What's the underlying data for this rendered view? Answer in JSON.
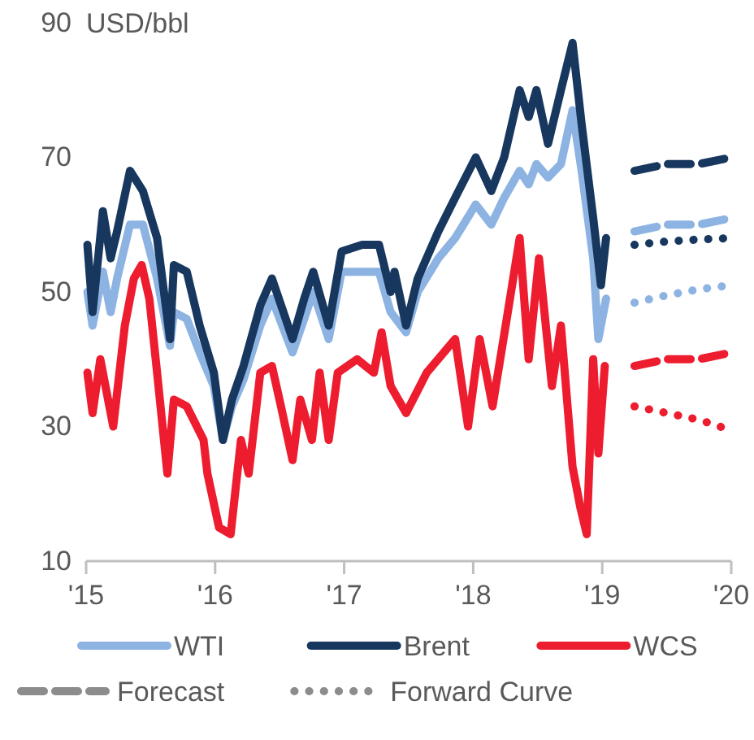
{
  "chart_data": {
    "type": "line",
    "ylabel": "USD/bbl",
    "xlim": [
      2015,
      2020
    ],
    "xticks": [
      {
        "value": 2015,
        "label": "'15"
      },
      {
        "value": 2016,
        "label": "'16"
      },
      {
        "value": 2017,
        "label": "'17"
      },
      {
        "value": 2018,
        "label": "'18"
      },
      {
        "value": 2019,
        "label": "'19"
      },
      {
        "value": 2020,
        "label": "'20"
      }
    ],
    "ylim": [
      10,
      90
    ],
    "yticks": [
      10,
      30,
      50,
      70,
      90
    ],
    "grid": false,
    "legend": "bottom",
    "marker": "none",
    "annotations": [
      "Forecast",
      "Forward Curve"
    ],
    "series": [
      {
        "name": "WTI",
        "color": "#8db3e2",
        "line_style": "solid",
        "x": [
          2015.01,
          2015.05,
          2015.13,
          2015.19,
          2015.24,
          2015.34,
          2015.44,
          2015.55,
          2015.65,
          2015.68,
          2015.78,
          2015.88,
          2015.99,
          2016.06,
          2016.13,
          2016.22,
          2016.35,
          2016.44,
          2016.6,
          2016.69,
          2016.76,
          2016.88,
          2016.98,
          2017.14,
          2017.27,
          2017.36,
          2017.48,
          2017.57,
          2017.73,
          2017.86,
          2018.02,
          2018.14,
          2018.24,
          2018.36,
          2018.43,
          2018.49,
          2018.58,
          2018.68,
          2018.77,
          2018.84,
          2018.93,
          2018.97,
          2019.03
        ],
        "values": [
          50,
          45,
          53,
          47,
          52,
          60,
          60,
          52,
          42,
          47,
          46,
          41,
          36,
          28,
          33,
          37,
          45,
          49,
          41,
          46,
          50,
          43,
          53,
          53,
          53,
          47,
          44,
          50,
          55,
          58,
          63,
          60,
          64,
          68,
          66,
          69,
          67,
          69,
          77,
          68,
          55,
          43,
          49
        ]
      },
      {
        "name": "Brent",
        "color": "#17375e",
        "line_style": "solid",
        "x": [
          2015.01,
          2015.05,
          2015.13,
          2015.19,
          2015.24,
          2015.34,
          2015.44,
          2015.55,
          2015.65,
          2015.68,
          2015.78,
          2015.88,
          2015.99,
          2016.06,
          2016.13,
          2016.22,
          2016.35,
          2016.44,
          2016.6,
          2016.69,
          2016.76,
          2016.88,
          2016.98,
          2017.14,
          2017.27,
          2017.36,
          2017.39,
          2017.48,
          2017.57,
          2017.73,
          2017.86,
          2018.02,
          2018.14,
          2018.24,
          2018.36,
          2018.43,
          2018.49,
          2018.58,
          2018.68,
          2018.77,
          2018.84,
          2018.93,
          2018.99,
          2019.03
        ],
        "values": [
          57,
          47,
          62,
          55,
          59,
          68,
          65,
          58,
          43,
          54,
          53,
          45,
          38,
          28,
          34,
          39,
          48,
          52,
          43,
          49,
          53,
          45,
          56,
          57,
          57,
          50,
          53,
          45,
          52,
          59,
          64,
          70,
          65,
          70,
          80,
          76,
          80,
          72,
          80,
          87,
          75,
          61,
          51,
          58
        ]
      },
      {
        "name": "WCS",
        "color": "#ed1c2e",
        "line_style": "solid",
        "x": [
          2015.01,
          2015.05,
          2015.11,
          2015.21,
          2015.3,
          2015.37,
          2015.43,
          2015.49,
          2015.55,
          2015.63,
          2015.68,
          2015.78,
          2015.91,
          2015.94,
          2016.03,
          2016.12,
          2016.2,
          2016.26,
          2016.35,
          2016.44,
          2016.51,
          2016.6,
          2016.66,
          2016.75,
          2016.81,
          2016.88,
          2016.95,
          2017.1,
          2017.23,
          2017.29,
          2017.36,
          2017.48,
          2017.64,
          2017.86,
          2017.96,
          2018.05,
          2018.15,
          2018.26,
          2018.36,
          2018.43,
          2018.51,
          2018.61,
          2018.68,
          2018.77,
          2018.83,
          2018.88,
          2018.93,
          2018.97,
          2019.02
        ],
        "values": [
          38,
          32,
          40,
          30,
          45,
          52,
          54,
          49,
          38,
          23,
          34,
          33,
          28,
          23,
          15,
          14,
          28,
          23,
          38,
          39,
          33,
          25,
          34,
          28,
          38,
          28,
          38,
          40,
          38,
          44,
          36,
          32,
          38,
          43,
          30,
          43,
          33,
          46,
          58,
          40,
          55,
          36,
          45,
          24,
          18,
          14,
          40,
          26,
          39
        ]
      },
      {
        "color": "#17375e",
        "line_style": "dashed",
        "x": [
          2019.25,
          2019.5,
          2019.75,
          2020
        ],
        "values": [
          68,
          69,
          69,
          70
        ]
      },
      {
        "color": "#8db3e2",
        "line_style": "dashed",
        "x": [
          2019.25,
          2019.5,
          2019.75,
          2020
        ],
        "values": [
          59,
          60,
          60,
          61
        ]
      },
      {
        "color": "#ed1c2e",
        "line_style": "dashed",
        "x": [
          2019.25,
          2019.5,
          2019.75,
          2020
        ],
        "values": [
          39,
          40,
          40,
          41
        ]
      },
      {
        "color": "#17375e",
        "line_style": "dotted",
        "x": [
          2019.25,
          2019.5,
          2019.75,
          2020
        ],
        "values": [
          57,
          57.5,
          57.8,
          58
        ]
      },
      {
        "color": "#8db3e2",
        "line_style": "dotted",
        "x": [
          2019.25,
          2019.5,
          2019.75,
          2020
        ],
        "values": [
          48.4,
          49.5,
          50.4,
          51
        ]
      },
      {
        "color": "#ed1c2e",
        "line_style": "dotted",
        "x": [
          2019.25,
          2019.5,
          2019.75,
          2019.96
        ],
        "values": [
          33,
          32,
          31,
          29.7
        ]
      }
    ]
  }
}
